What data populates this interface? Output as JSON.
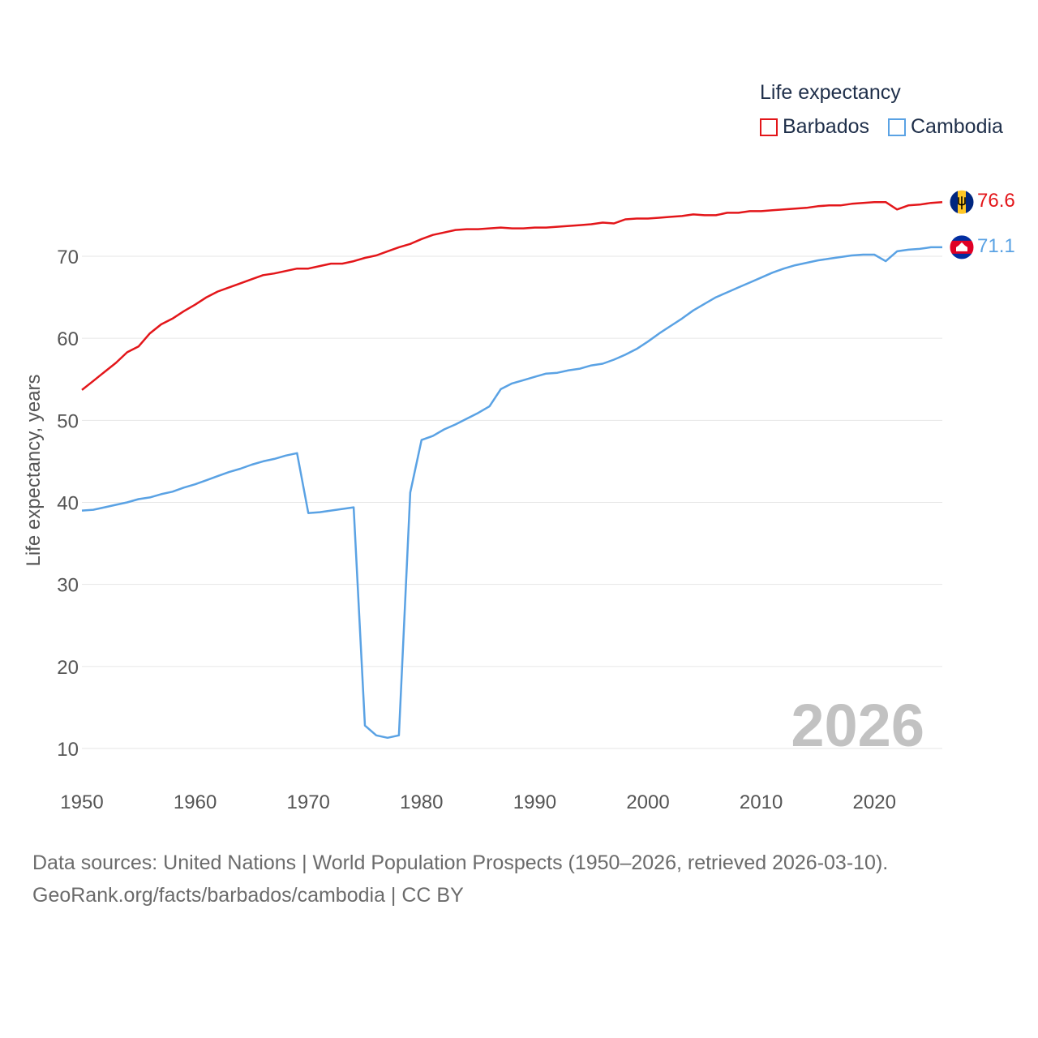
{
  "legend": {
    "title": "Life expectancy",
    "items": [
      {
        "name": "Barbados",
        "color": "#e3161a"
      },
      {
        "name": "Cambodia",
        "color": "#5aa2e4"
      }
    ]
  },
  "year_watermark": "2026",
  "source": {
    "line1": "Data sources: United Nations | World Population Prospects (1950–2026, retrieved 2026-03-10).",
    "line2": "GeoRank.org/facts/barbados/cambodia | CC BY"
  },
  "chart_data": {
    "type": "line",
    "title": "Life expectancy",
    "xlabel": "",
    "ylabel": "Life expectancy, years",
    "xlim": [
      1950,
      2026
    ],
    "ylim": [
      10,
      80
    ],
    "xticks": [
      1950,
      1960,
      1970,
      1980,
      1990,
      2000,
      2010,
      2020
    ],
    "yticks": [
      10,
      20,
      30,
      40,
      50,
      60,
      70
    ],
    "grid": true,
    "legend_position": "top-right",
    "x": [
      1950,
      1951,
      1952,
      1953,
      1954,
      1955,
      1956,
      1957,
      1958,
      1959,
      1960,
      1961,
      1962,
      1963,
      1964,
      1965,
      1966,
      1967,
      1968,
      1969,
      1970,
      1971,
      1972,
      1973,
      1974,
      1975,
      1976,
      1977,
      1978,
      1979,
      1980,
      1981,
      1982,
      1983,
      1984,
      1985,
      1986,
      1987,
      1988,
      1989,
      1990,
      1991,
      1992,
      1993,
      1994,
      1995,
      1996,
      1997,
      1998,
      1999,
      2000,
      2001,
      2002,
      2003,
      2004,
      2005,
      2006,
      2007,
      2008,
      2009,
      2010,
      2011,
      2012,
      2013,
      2014,
      2015,
      2016,
      2017,
      2018,
      2019,
      2020,
      2021,
      2022,
      2023,
      2024,
      2025,
      2026
    ],
    "series": [
      {
        "name": "Barbados",
        "color": "#e3161a",
        "end_label": "76.6",
        "values": [
          53.7,
          54.8,
          55.9,
          57.0,
          58.3,
          59.0,
          60.6,
          61.7,
          62.4,
          63.3,
          64.1,
          65.0,
          65.7,
          66.2,
          66.7,
          67.2,
          67.7,
          67.9,
          68.2,
          68.5,
          68.5,
          68.8,
          69.1,
          69.1,
          69.4,
          69.8,
          70.1,
          70.6,
          71.1,
          71.5,
          72.1,
          72.6,
          72.9,
          73.2,
          73.3,
          73.3,
          73.4,
          73.5,
          73.4,
          73.4,
          73.5,
          73.5,
          73.6,
          73.7,
          73.8,
          73.9,
          74.1,
          74.0,
          74.5,
          74.6,
          74.6,
          74.7,
          74.8,
          74.9,
          75.1,
          75.0,
          75.0,
          75.3,
          75.3,
          75.5,
          75.5,
          75.6,
          75.7,
          75.8,
          75.9,
          76.1,
          76.2,
          76.2,
          76.4,
          76.5,
          76.6,
          76.6,
          75.7,
          76.2,
          76.3,
          76.5,
          76.6
        ]
      },
      {
        "name": "Cambodia",
        "color": "#5aa2e4",
        "end_label": "71.1",
        "values": [
          39.0,
          39.1,
          39.4,
          39.7,
          40.0,
          40.4,
          40.6,
          41.0,
          41.3,
          41.8,
          42.2,
          42.7,
          43.2,
          43.7,
          44.1,
          44.6,
          45.0,
          45.3,
          45.7,
          46.0,
          38.7,
          38.8,
          39.0,
          39.2,
          39.4,
          12.8,
          11.6,
          11.3,
          11.6,
          41.2,
          47.6,
          48.1,
          48.9,
          49.5,
          50.2,
          50.9,
          51.7,
          53.8,
          54.5,
          54.9,
          55.3,
          55.7,
          55.8,
          56.1,
          56.3,
          56.7,
          56.9,
          57.4,
          58.0,
          58.7,
          59.6,
          60.6,
          61.5,
          62.4,
          63.4,
          64.2,
          65.0,
          65.6,
          66.2,
          66.8,
          67.4,
          68.0,
          68.5,
          68.9,
          69.2,
          69.5,
          69.7,
          69.9,
          70.1,
          70.2,
          70.2,
          69.4,
          70.6,
          70.8,
          70.9,
          71.1,
          71.1
        ]
      }
    ]
  }
}
